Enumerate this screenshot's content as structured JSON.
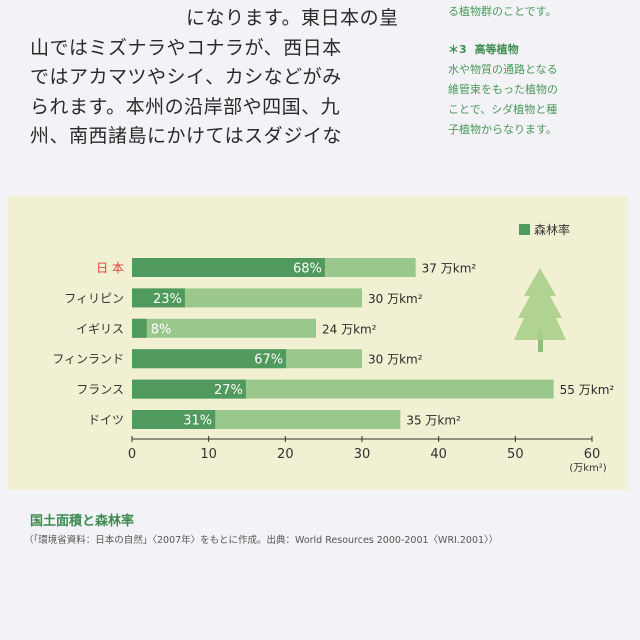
{
  "body_text": {
    "lines": [
      "　　　　　　　　になります。東日本の皇",
      "山ではミズナラやコナラが、西日本",
      "ではアカマツやシイ、カシなどがみ",
      "られます。本州の沿岸部や四国、九",
      "州、南西諸島にかけてはスダジイな"
    ]
  },
  "side_note": {
    "top_line": "る植物群のことです。",
    "heading_num": "＊3",
    "heading": "高等植物",
    "lines": [
      "水や物質の通路となる",
      "維管束をもった植物の",
      "ことで、シダ植物と種",
      "子植物からなります。"
    ]
  },
  "colors": {
    "forest": "#4f9a5c",
    "other": "#9ac88c",
    "panel": "#f1f0d2",
    "country_jp": "#e0413c",
    "country": "#333333",
    "tree": "#a9cf89"
  },
  "chart_data": {
    "type": "bar",
    "orientation": "horizontal",
    "stacked": true,
    "legend": {
      "label": "森林率",
      "placement": "top-right"
    },
    "categories": [
      "日 本",
      "フィリピン",
      "イギリス",
      "フィンランド",
      "フランス",
      "ドイツ"
    ],
    "total_area": [
      37,
      30,
      24,
      30,
      55,
      35
    ],
    "forest_rate": [
      68,
      23,
      8,
      67,
      27,
      31
    ],
    "rate_labels": [
      "68%",
      "23%",
      "8%",
      "67%",
      "27%",
      "31%"
    ],
    "area_labels": [
      "37 万km²",
      "30 万km²",
      "24 万km²",
      "30 万km²",
      "55 万km²",
      "35 万km²"
    ],
    "x_ticks": [
      "0",
      "10",
      "20",
      "30",
      "40",
      "50",
      "60"
    ],
    "x_unit": "(万km²)",
    "xlim": [
      0,
      60
    ],
    "highlight_category": "日 本"
  },
  "caption": {
    "title": "国土面積と森林率",
    "source": "（「環境省資料：日本の自然」〈2007年〉をもとに作成。出典：World Resources 2000-2001〈WRI.2001〉）"
  }
}
